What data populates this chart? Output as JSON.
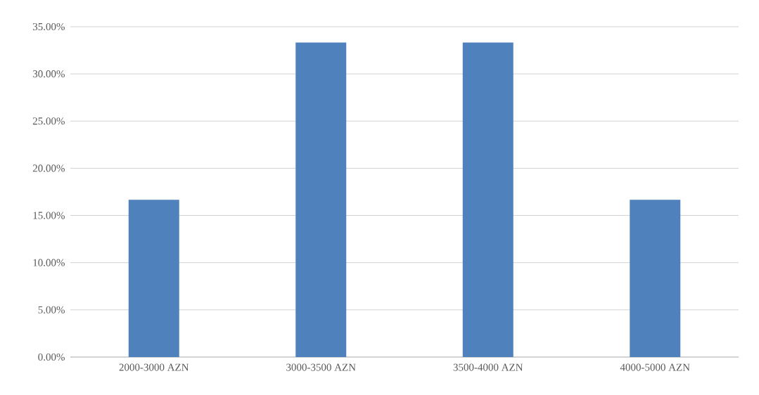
{
  "chart_data": {
    "type": "bar",
    "categories": [
      "2000-3000 AZN",
      "3000-3500 AZN",
      "3500-4000 AZN",
      "4000-5000 AZN"
    ],
    "values": [
      16.67,
      33.33,
      33.33,
      16.67
    ],
    "color": "#4f81bd",
    "ylim": [
      0,
      35
    ],
    "yticks": [
      {
        "value": 0,
        "label": "0.00%"
      },
      {
        "value": 5,
        "label": "5.00%"
      },
      {
        "value": 10,
        "label": "10.00%"
      },
      {
        "value": 15,
        "label": "15.00%"
      },
      {
        "value": 20,
        "label": "20.00%"
      },
      {
        "value": 25,
        "label": "25.00%"
      },
      {
        "value": 30,
        "label": "30.00%"
      },
      {
        "value": 35,
        "label": "35.00%"
      }
    ],
    "grid": "y"
  }
}
